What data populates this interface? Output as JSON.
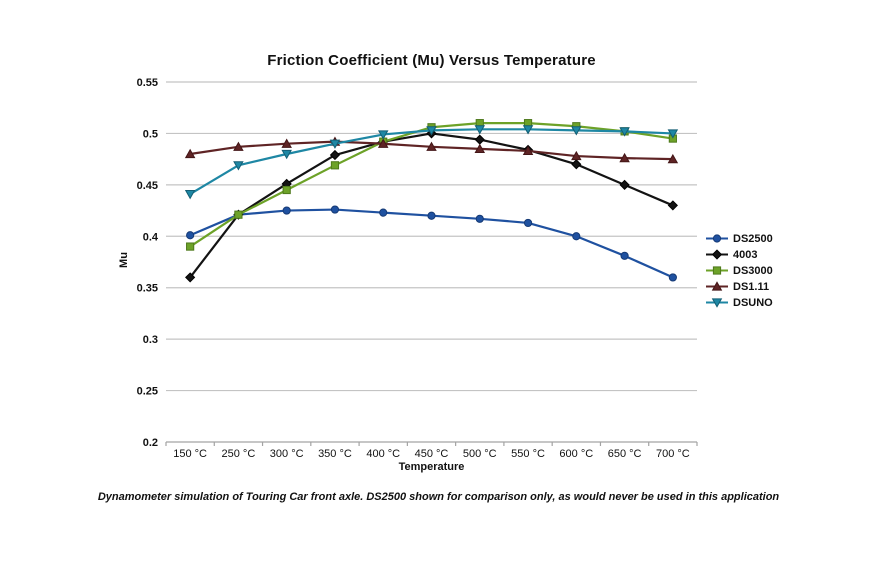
{
  "title": "Friction Coefficient (Mu) Versus Temperature",
  "caption": "Dynamometer simulation of Touring Car front axle. DS2500 shown for comparison only, as would never be used in this application",
  "chart_data": {
    "type": "line",
    "title": "Friction Coefficient (Mu) Versus Temperature",
    "xlabel": "Temperature",
    "ylabel": "Mu",
    "categories": [
      "150 °C",
      "250 °C",
      "300 °C",
      "350 °C",
      "400 °C",
      "450 °C",
      "500 °C",
      "550 °C",
      "600 °C",
      "650 °C",
      "700 °C"
    ],
    "ylim": [
      0.2,
      0.55
    ],
    "y_ticks": [
      0.55,
      0.5,
      0.45,
      0.4,
      0.35,
      0.3,
      0.25,
      0.2
    ],
    "grid": "horizontal",
    "legend_position": "right",
    "series": [
      {
        "name": "DS2500",
        "marker": "circle",
        "color": "#1F51A0",
        "edge": "#163A75",
        "values": [
          0.401,
          0.421,
          0.425,
          0.426,
          0.423,
          0.42,
          0.417,
          0.413,
          0.4,
          0.381,
          0.36
        ]
      },
      {
        "name": "4003",
        "marker": "diamond",
        "color": "#131313",
        "edge": "#000000",
        "values": [
          0.36,
          0.421,
          0.451,
          0.479,
          0.492,
          0.5,
          0.494,
          0.484,
          0.47,
          0.45,
          0.43
        ]
      },
      {
        "name": "DS3000",
        "marker": "square",
        "color": "#6DA228",
        "edge": "#4E791B",
        "values": [
          0.39,
          0.421,
          0.445,
          0.469,
          0.492,
          0.506,
          0.51,
          0.51,
          0.507,
          0.502,
          0.495
        ]
      },
      {
        "name": "DS1.11",
        "marker": "triangle-up",
        "color": "#5F2425",
        "edge": "#431617",
        "values": [
          0.48,
          0.487,
          0.49,
          0.492,
          0.49,
          0.487,
          0.485,
          0.483,
          0.478,
          0.476,
          0.475
        ]
      },
      {
        "name": "DSUNO",
        "marker": "triangle-down",
        "color": "#1E87A4",
        "edge": "#135E74",
        "values": [
          0.441,
          0.469,
          0.48,
          0.49,
          0.499,
          0.503,
          0.504,
          0.504,
          0.503,
          0.502,
          0.5
        ]
      }
    ]
  },
  "colors": {
    "gridline": "#C4C4C4",
    "axis": "#A3A3A3",
    "text": "#111111",
    "background": "#FFFFFF"
  }
}
